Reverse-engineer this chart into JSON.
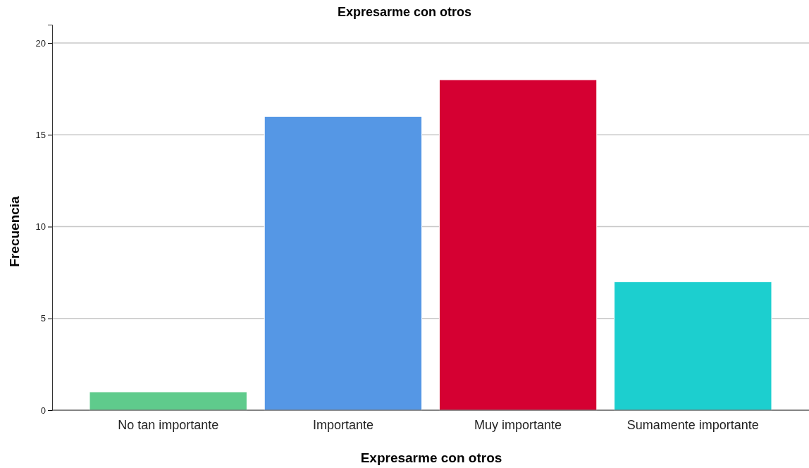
{
  "chart_data": {
    "type": "bar",
    "title": "Expresarme con otros",
    "xlabel": "Expresarme con otros",
    "ylabel": "Frecuencia",
    "categories": [
      "No tan importante",
      "Importante",
      "Muy importante",
      "Sumamente importante"
    ],
    "values": [
      1,
      16,
      18,
      7
    ],
    "colors": [
      "#5fcb8c",
      "#5597e5",
      "#d50032",
      "#1ccfcf"
    ],
    "ylim": [
      0,
      21
    ],
    "yticks": [
      0,
      5,
      10,
      15,
      20
    ],
    "grid": "y",
    "legend": false
  }
}
